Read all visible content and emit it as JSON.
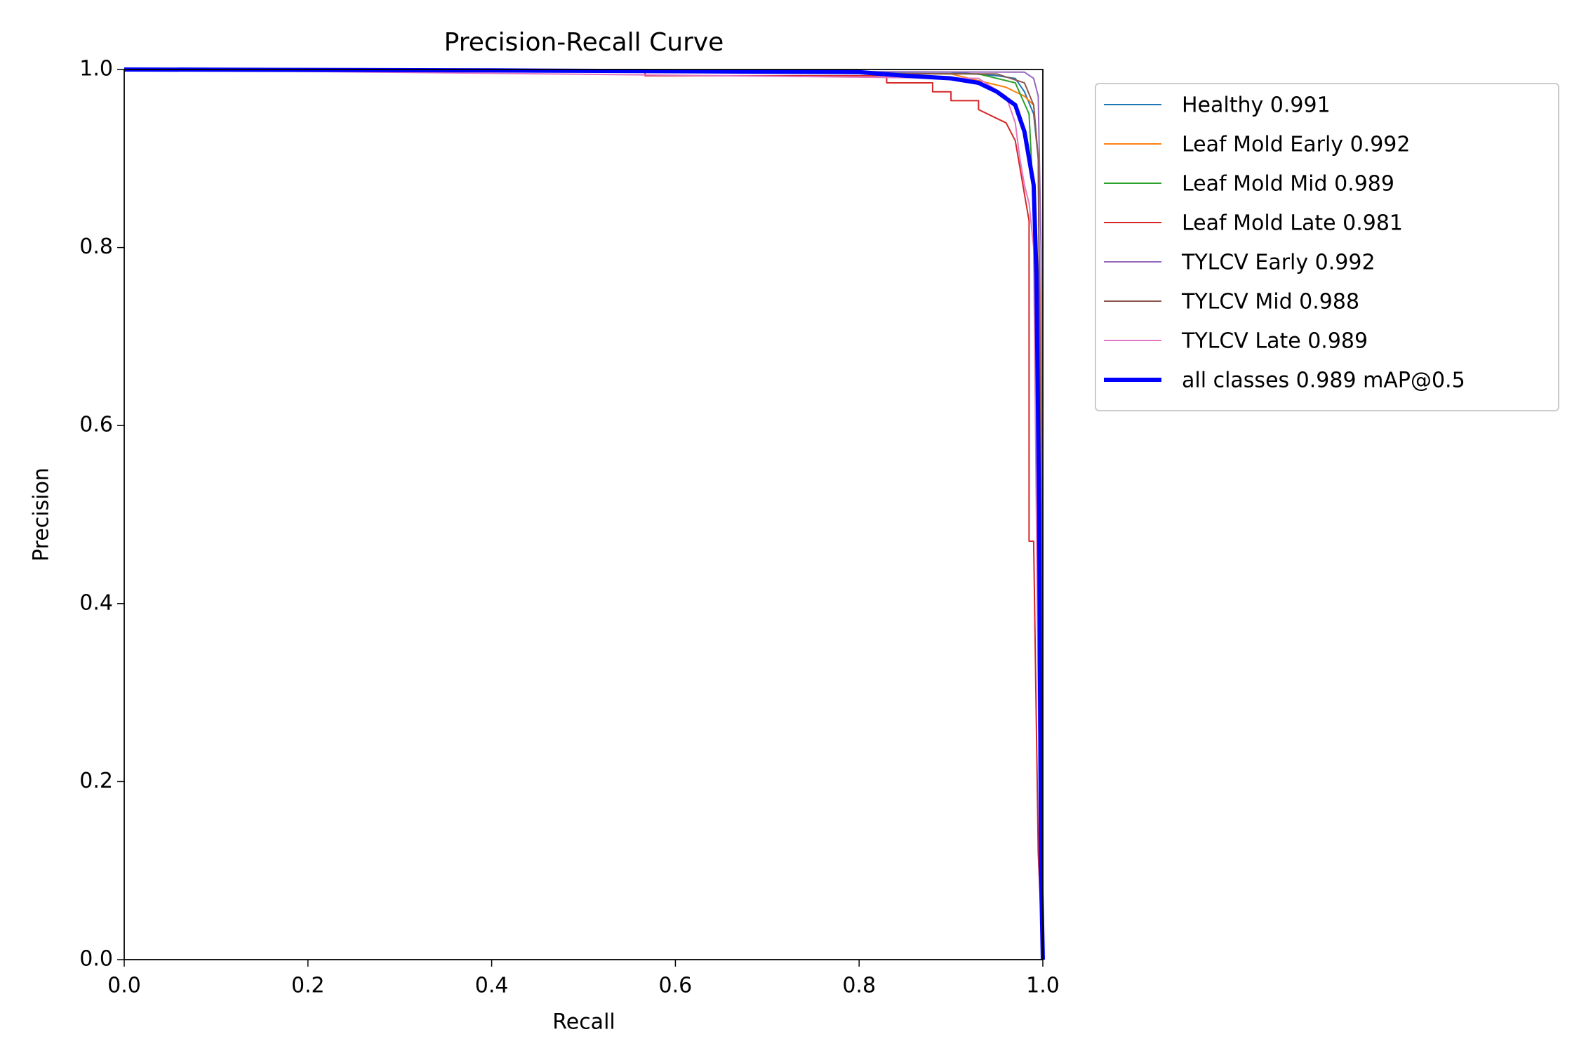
{
  "chart_data": {
    "type": "line",
    "title": "Precision-Recall Curve",
    "x_label": "Recall",
    "y_label": "Precision",
    "xlim": [
      0,
      1
    ],
    "ylim": [
      0,
      1
    ],
    "xticks": [
      {
        "value": 0,
        "label": "0.0"
      },
      0.2,
      0.4,
      0.6,
      0.8,
      {
        "value": 1,
        "label": "1.0"
      }
    ],
    "yticks": [
      {
        "value": 0,
        "label": "0.0"
      },
      0.2,
      0.4,
      0.6,
      0.8,
      {
        "value": 1,
        "label": "1.0"
      }
    ],
    "grid": false,
    "legend": "outside",
    "series": [
      {
        "name": "Healthy 0.991",
        "color": "#1f77b4",
        "linewidth": 2,
        "x": [
          0,
          0.9,
          0.95,
          0.97,
          0.98,
          0.99,
          0.995,
          0.998,
          1.0
        ],
        "values": [
          1,
          0.997,
          0.993,
          0.99,
          0.975,
          0.95,
          0.9,
          0.5,
          0
        ]
      },
      {
        "name": "Leaf Mold Early 0.992",
        "color": "#ff7f0e",
        "linewidth": 2,
        "x": [
          0,
          0.9,
          0.96,
          0.98,
          0.99,
          0.995,
          0.998,
          1.0
        ],
        "values": [
          1,
          0.995,
          0.98,
          0.97,
          0.96,
          0.9,
          0.6,
          0
        ]
      },
      {
        "name": "Leaf Mold Mid 0.989",
        "color": "#2ca02c",
        "linewidth": 2,
        "x": [
          0,
          0.93,
          0.97,
          0.985,
          0.99,
          0.993,
          0.997,
          1.0
        ],
        "values": [
          1,
          0.995,
          0.985,
          0.95,
          0.85,
          0.77,
          0.4,
          0
        ]
      },
      {
        "name": "Leaf Mold Late 0.981",
        "color": "#d62728",
        "linewidth": 2,
        "x": [
          0,
          0.567,
          0.567,
          0.83,
          0.83,
          0.88,
          0.88,
          0.9,
          0.9,
          0.93,
          0.93,
          0.96,
          0.97,
          0.975,
          0.985,
          0.985,
          0.99,
          0.995,
          1.0
        ],
        "values": [
          1,
          1,
          0.993,
          0.993,
          0.985,
          0.985,
          0.975,
          0.975,
          0.965,
          0.965,
          0.955,
          0.94,
          0.92,
          0.89,
          0.83,
          0.47,
          0.47,
          0.12,
          0
        ]
      },
      {
        "name": "TYLCV Early 0.992",
        "color": "#9467bd",
        "linewidth": 2,
        "x": [
          0,
          0.98,
          0.99,
          0.995,
          0.998,
          1.0
        ],
        "values": [
          1,
          0.997,
          0.99,
          0.97,
          0.8,
          0
        ]
      },
      {
        "name": "TYLCV Mid 0.988",
        "color": "#8c564b",
        "linewidth": 2,
        "x": [
          0,
          0.95,
          0.98,
          0.99,
          0.995,
          0.998,
          1.0
        ],
        "values": [
          1,
          0.995,
          0.985,
          0.96,
          0.9,
          0.5,
          0
        ]
      },
      {
        "name": "TYLCV Late 0.989",
        "color": "#e377c2",
        "linewidth": 2,
        "x": [
          0,
          0.93,
          0.96,
          0.97,
          0.975,
          0.98,
          0.985,
          0.99,
          0.995,
          1.0
        ],
        "values": [
          1,
          0.99,
          0.97,
          0.94,
          0.9,
          0.87,
          0.85,
          0.8,
          0.3,
          0
        ]
      },
      {
        "name": "all classes 0.989 mAP@0.5",
        "color": "#0000ff",
        "linewidth": 6,
        "x": [
          0,
          0.4,
          0.8,
          0.85,
          0.9,
          0.93,
          0.95,
          0.97,
          0.98,
          0.99,
          0.993,
          0.996,
          0.998,
          1.0
        ],
        "values": [
          1,
          0.999,
          0.997,
          0.993,
          0.99,
          0.985,
          0.975,
          0.96,
          0.93,
          0.87,
          0.77,
          0.5,
          0.1,
          0
        ]
      }
    ]
  }
}
